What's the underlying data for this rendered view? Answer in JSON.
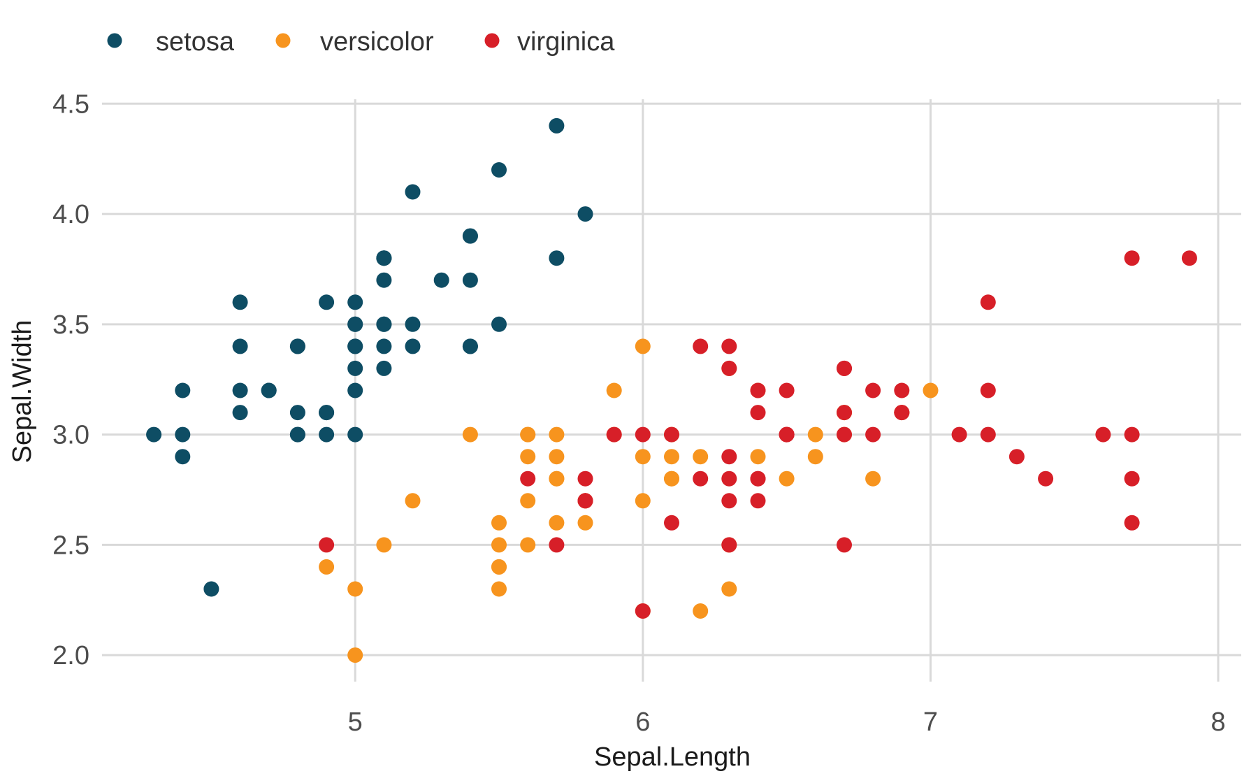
{
  "figure": {
    "background": "#ffffff"
  },
  "chart_data": {
    "type": "scatter",
    "title": "",
    "xlabel": "Sepal.Length",
    "ylabel": "Sepal.Width",
    "xlim": [
      4.12,
      8.08
    ],
    "ylim": [
      1.88,
      4.52
    ],
    "grid": true,
    "grid_color": "#d9d9d9",
    "tick_label_color": "#4d4d4d",
    "axis_title_color": "#1a1a1a",
    "legend_text_color": "#333333",
    "legend_position": "top-left",
    "point_radius": 11,
    "x_ticks": [
      {
        "value": 5,
        "label": "5"
      },
      {
        "value": 6,
        "label": "6"
      },
      {
        "value": 7,
        "label": "7"
      },
      {
        "value": 8,
        "label": "8"
      }
    ],
    "y_ticks": [
      {
        "value": 2.0,
        "label": "2.0"
      },
      {
        "value": 2.5,
        "label": "2.5"
      },
      {
        "value": 3.0,
        "label": "3.0"
      },
      {
        "value": 3.5,
        "label": "3.5"
      },
      {
        "value": 4.0,
        "label": "4.0"
      },
      {
        "value": 4.5,
        "label": "4.5"
      }
    ],
    "series": [
      {
        "name": "setosa",
        "color": "#0e4d64",
        "points": [
          [
            5.1,
            3.5
          ],
          [
            4.9,
            3.0
          ],
          [
            4.7,
            3.2
          ],
          [
            4.6,
            3.1
          ],
          [
            5.0,
            3.6
          ],
          [
            5.4,
            3.9
          ],
          [
            4.6,
            3.4
          ],
          [
            5.0,
            3.4
          ],
          [
            4.4,
            2.9
          ],
          [
            4.9,
            3.1
          ],
          [
            5.4,
            3.7
          ],
          [
            4.8,
            3.4
          ],
          [
            4.8,
            3.0
          ],
          [
            4.3,
            3.0
          ],
          [
            5.8,
            4.0
          ],
          [
            5.7,
            4.4
          ],
          [
            5.4,
            3.9
          ],
          [
            5.1,
            3.5
          ],
          [
            5.7,
            3.8
          ],
          [
            5.1,
            3.8
          ],
          [
            5.4,
            3.4
          ],
          [
            5.1,
            3.7
          ],
          [
            4.6,
            3.6
          ],
          [
            5.1,
            3.3
          ],
          [
            4.8,
            3.4
          ],
          [
            5.0,
            3.0
          ],
          [
            5.0,
            3.4
          ],
          [
            5.2,
            3.5
          ],
          [
            5.2,
            3.4
          ],
          [
            4.7,
            3.2
          ],
          [
            4.8,
            3.1
          ],
          [
            5.4,
            3.4
          ],
          [
            5.2,
            4.1
          ],
          [
            5.5,
            4.2
          ],
          [
            4.9,
            3.1
          ],
          [
            5.0,
            3.2
          ],
          [
            5.5,
            3.5
          ],
          [
            4.9,
            3.6
          ],
          [
            4.4,
            3.0
          ],
          [
            5.1,
            3.4
          ],
          [
            5.0,
            3.5
          ],
          [
            4.5,
            2.3
          ],
          [
            4.4,
            3.2
          ],
          [
            5.0,
            3.5
          ],
          [
            5.1,
            3.8
          ],
          [
            4.8,
            3.0
          ],
          [
            5.1,
            3.8
          ],
          [
            4.6,
            3.2
          ],
          [
            5.3,
            3.7
          ],
          [
            5.0,
            3.3
          ]
        ]
      },
      {
        "name": "versicolor",
        "color": "#f7941e",
        "points": [
          [
            7.0,
            3.2
          ],
          [
            6.4,
            3.2
          ],
          [
            6.9,
            3.1
          ],
          [
            5.5,
            2.3
          ],
          [
            6.5,
            2.8
          ],
          [
            5.7,
            2.8
          ],
          [
            6.3,
            3.3
          ],
          [
            4.9,
            2.4
          ],
          [
            6.6,
            2.9
          ],
          [
            5.2,
            2.7
          ],
          [
            5.0,
            2.0
          ],
          [
            5.9,
            3.0
          ],
          [
            6.0,
            2.2
          ],
          [
            6.1,
            2.9
          ],
          [
            5.6,
            2.9
          ],
          [
            6.7,
            3.1
          ],
          [
            5.6,
            3.0
          ],
          [
            5.8,
            2.7
          ],
          [
            6.2,
            2.2
          ],
          [
            5.6,
            2.5
          ],
          [
            5.9,
            3.2
          ],
          [
            6.1,
            2.8
          ],
          [
            6.3,
            2.5
          ],
          [
            6.1,
            2.8
          ],
          [
            6.4,
            2.9
          ],
          [
            6.6,
            3.0
          ],
          [
            6.8,
            2.8
          ],
          [
            6.7,
            3.0
          ],
          [
            6.0,
            2.9
          ],
          [
            5.7,
            2.6
          ],
          [
            5.5,
            2.4
          ],
          [
            5.5,
            2.4
          ],
          [
            5.8,
            2.7
          ],
          [
            6.0,
            2.7
          ],
          [
            5.4,
            3.0
          ],
          [
            6.0,
            3.4
          ],
          [
            6.7,
            3.1
          ],
          [
            6.3,
            2.3
          ],
          [
            5.6,
            3.0
          ],
          [
            5.5,
            2.5
          ],
          [
            5.5,
            2.6
          ],
          [
            6.1,
            3.0
          ],
          [
            5.8,
            2.6
          ],
          [
            5.0,
            2.3
          ],
          [
            5.6,
            2.7
          ],
          [
            5.7,
            3.0
          ],
          [
            5.7,
            2.9
          ],
          [
            6.2,
            2.9
          ],
          [
            5.1,
            2.5
          ],
          [
            5.7,
            2.8
          ]
        ]
      },
      {
        "name": "virginica",
        "color": "#d71f28",
        "points": [
          [
            6.3,
            3.3
          ],
          [
            5.8,
            2.7
          ],
          [
            7.1,
            3.0
          ],
          [
            6.3,
            2.9
          ],
          [
            6.5,
            3.0
          ],
          [
            7.6,
            3.0
          ],
          [
            4.9,
            2.5
          ],
          [
            7.3,
            2.9
          ],
          [
            6.7,
            2.5
          ],
          [
            7.2,
            3.6
          ],
          [
            6.5,
            3.2
          ],
          [
            6.4,
            2.7
          ],
          [
            6.8,
            3.0
          ],
          [
            5.7,
            2.5
          ],
          [
            5.8,
            2.8
          ],
          [
            6.4,
            3.2
          ],
          [
            6.5,
            3.0
          ],
          [
            7.7,
            3.8
          ],
          [
            7.7,
            2.6
          ],
          [
            6.0,
            2.2
          ],
          [
            6.9,
            3.2
          ],
          [
            5.6,
            2.8
          ],
          [
            7.7,
            2.8
          ],
          [
            6.3,
            2.7
          ],
          [
            6.7,
            3.3
          ],
          [
            7.2,
            3.2
          ],
          [
            6.2,
            2.8
          ],
          [
            6.1,
            3.0
          ],
          [
            6.4,
            2.8
          ],
          [
            7.2,
            3.0
          ],
          [
            7.4,
            2.8
          ],
          [
            7.9,
            3.8
          ],
          [
            6.4,
            2.8
          ],
          [
            6.3,
            2.8
          ],
          [
            6.1,
            2.6
          ],
          [
            7.7,
            3.0
          ],
          [
            6.3,
            3.4
          ],
          [
            6.4,
            3.1
          ],
          [
            6.0,
            3.0
          ],
          [
            6.9,
            3.1
          ],
          [
            6.7,
            3.1
          ],
          [
            6.9,
            3.1
          ],
          [
            5.8,
            2.7
          ],
          [
            6.8,
            3.2
          ],
          [
            6.7,
            3.3
          ],
          [
            6.7,
            3.0
          ],
          [
            6.3,
            2.5
          ],
          [
            6.5,
            3.0
          ],
          [
            6.2,
            3.4
          ],
          [
            5.9,
            3.0
          ]
        ]
      }
    ]
  }
}
